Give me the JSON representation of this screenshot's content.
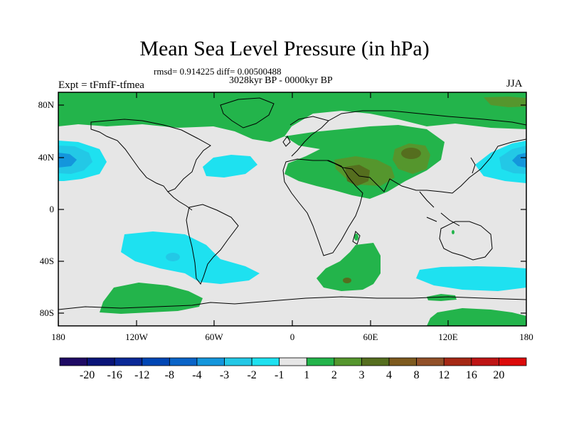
{
  "title": "Mean Sea Level Pressure (in hPa)",
  "stats_line": "rmsd= 0.914225 diff= 0.00500488",
  "period_line": "3028kyr BP - 0000kyr BP",
  "experiment_label": "Expt = tFmfF-tfmea",
  "season_label": "JJA",
  "lat_ticks": [
    "80N",
    "40N",
    "0",
    "40S",
    "80S"
  ],
  "lon_ticks": [
    "180",
    "120W",
    "60W",
    "0",
    "60E",
    "120E",
    "180"
  ],
  "colorbar": {
    "labels": [
      "-20",
      "-16",
      "-12",
      "-8",
      "-4",
      "-3",
      "-2",
      "-1",
      "1",
      "2",
      "3",
      "4",
      "8",
      "12",
      "16",
      "20"
    ],
    "colors": [
      "#1e0a64",
      "#0a1478",
      "#0a2896",
      "#0046b4",
      "#0a64c8",
      "#1496dc",
      "#23c8e6",
      "#1ee1f0",
      "#e6e6e6",
      "#23b44b",
      "#55962d",
      "#556e1e",
      "#7d5a1e",
      "#915028",
      "#a52814",
      "#be1414",
      "#dc0a0a"
    ]
  },
  "colors": {
    "neutral": "#e6e6e6",
    "pos_light": "#23b44b",
    "pos_mid": "#55962d",
    "pos_dark": "#556e1e",
    "neg_light": "#1ee1f0",
    "neg_mid": "#23c8e6",
    "neg_dark": "#1496dc"
  }
}
